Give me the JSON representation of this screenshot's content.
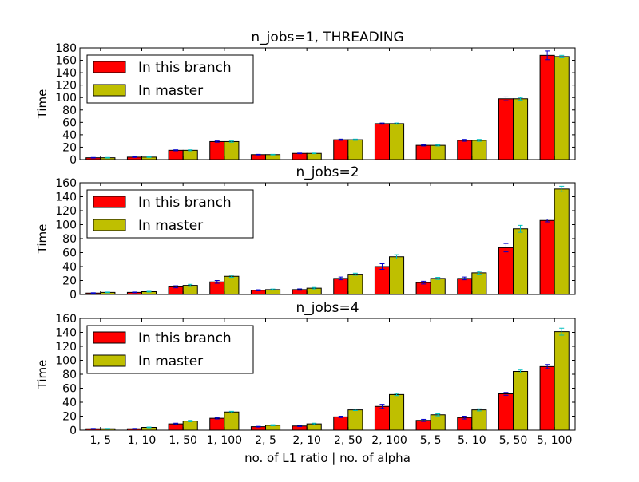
{
  "figure": {
    "xlabel": "no. of L1 ratio | no. of alpha",
    "colors": {
      "branch": "#ff0000",
      "master": "#bfbf00",
      "err_branch": "#0000cc",
      "err_master": "#00bfbf"
    }
  },
  "chart_data": [
    {
      "type": "bar",
      "title": "n_jobs=1, THREADING",
      "ylabel": "Time",
      "ylim": [
        0,
        180
      ],
      "yticks": [
        0,
        20,
        40,
        60,
        80,
        100,
        120,
        140,
        160,
        180
      ],
      "categories": [
        "1, 5",
        "1, 10",
        "1, 50",
        "1, 100",
        "2, 5",
        "2, 10",
        "2, 50",
        "2, 100",
        "5, 5",
        "5, 10",
        "5, 50",
        "5, 100"
      ],
      "legend": {
        "placement": "top-left",
        "entries": [
          "In this branch",
          "In master"
        ]
      },
      "series": [
        {
          "name": "In this branch",
          "values": [
            3,
            4,
            15,
            29,
            8,
            10,
            32,
            58,
            23,
            31,
            98,
            168
          ],
          "err": [
            0.5,
            0.5,
            0.8,
            1,
            0.5,
            0.5,
            1,
            1,
            1,
            1.5,
            3,
            7
          ]
        },
        {
          "name": "In master",
          "values": [
            3,
            4,
            15,
            29,
            8,
            10,
            32,
            58,
            23,
            31,
            98,
            166
          ],
          "err": [
            0.5,
            0.5,
            0.8,
            1,
            0.5,
            0.5,
            1,
            1,
            1,
            1.5,
            2,
            2
          ]
        }
      ]
    },
    {
      "type": "bar",
      "title": "n_jobs=2",
      "ylabel": "Time",
      "ylim": [
        0,
        160
      ],
      "yticks": [
        0,
        20,
        40,
        60,
        80,
        100,
        120,
        140,
        160
      ],
      "categories": [
        "1, 5",
        "1, 10",
        "1, 50",
        "1, 100",
        "2, 5",
        "2, 10",
        "2, 50",
        "2, 100",
        "5, 5",
        "5, 10",
        "5, 50",
        "5, 100"
      ],
      "legend": {
        "placement": "top-left",
        "entries": [
          "In this branch",
          "In master"
        ]
      },
      "series": [
        {
          "name": "In this branch",
          "values": [
            2,
            3,
            11,
            18,
            6,
            7,
            23,
            40,
            17,
            23,
            67,
            106
          ],
          "err": [
            0.5,
            0.5,
            1.5,
            2,
            0.8,
            1,
            2,
            4,
            2,
            2,
            6,
            2
          ]
        },
        {
          "name": "In master",
          "values": [
            3,
            4,
            13,
            26,
            7,
            9,
            29,
            54,
            23,
            31,
            94,
            151
          ],
          "err": [
            0.5,
            0.5,
            1.5,
            1.5,
            0.8,
            1,
            1.5,
            3,
            1.5,
            2,
            5,
            4
          ]
        }
      ]
    },
    {
      "type": "bar",
      "title": "n_jobs=4",
      "ylabel": "Time",
      "ylim": [
        0,
        160
      ],
      "yticks": [
        0,
        20,
        40,
        60,
        80,
        100,
        120,
        140,
        160
      ],
      "categories": [
        "1, 5",
        "1, 10",
        "1, 50",
        "1, 100",
        "2, 5",
        "2, 10",
        "2, 50",
        "2, 100",
        "5, 5",
        "5, 10",
        "5, 50",
        "5, 100"
      ],
      "legend": {
        "placement": "top-left",
        "entries": [
          "In this branch",
          "In master"
        ]
      },
      "series": [
        {
          "name": "In this branch",
          "values": [
            2,
            2,
            9,
            17,
            5,
            6,
            19,
            34,
            14,
            18,
            52,
            91
          ],
          "err": [
            0.5,
            0.5,
            1,
            1,
            0.5,
            0.8,
            1,
            3,
            1.5,
            2,
            2,
            3
          ]
        },
        {
          "name": "In master",
          "values": [
            2,
            4,
            13,
            26,
            7,
            9,
            29,
            51,
            22,
            29,
            84,
            141
          ],
          "err": [
            0.5,
            0.5,
            1,
            1,
            0.8,
            1,
            1,
            1.5,
            1.5,
            1.5,
            2,
            5
          ]
        }
      ]
    }
  ]
}
